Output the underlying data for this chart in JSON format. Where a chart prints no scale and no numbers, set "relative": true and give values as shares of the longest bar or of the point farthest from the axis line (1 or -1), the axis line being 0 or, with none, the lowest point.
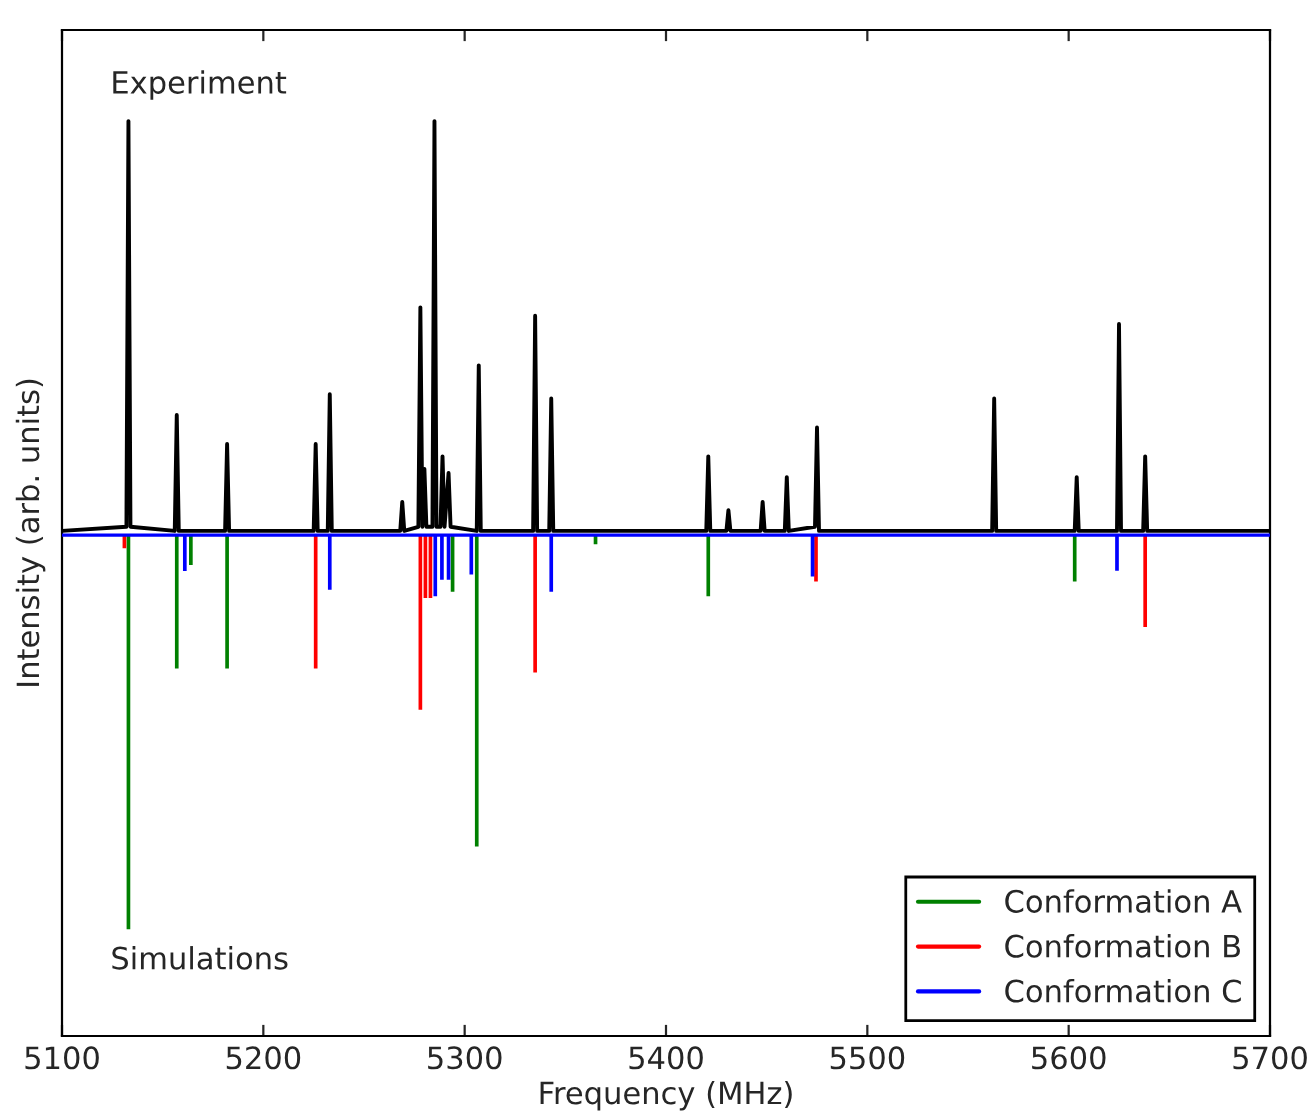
{
  "chart_data": {
    "type": "line",
    "relative": true,
    "xlabel": "Frequency (MHz)",
    "ylabel": "Intensity (arb. units)",
    "annotations": [
      "Experiment",
      "Simulations"
    ],
    "xlim": [
      5100,
      5700
    ],
    "xticks": [
      5100,
      5200,
      5300,
      5400,
      5500,
      5600,
      5700
    ],
    "ref_lines": [
      {
        "axis": "y",
        "value": 0,
        "color": "#0000ff"
      }
    ],
    "grid": false,
    "legend": "bottom right",
    "marker": "none",
    "line_style": "solid",
    "series": [
      {
        "color": "#000000",
        "x": [
          5100,
          5132,
          5133,
          5134,
          5156,
          5157,
          5158,
          5181,
          5182,
          5183,
          5225,
          5226,
          5227,
          5232,
          5233,
          5234,
          5268,
          5269,
          5270,
          5277,
          5278,
          5279,
          5280,
          5281,
          5282,
          5284,
          5285,
          5286,
          5288,
          5289,
          5290,
          5292,
          5293,
          5306,
          5307,
          5308,
          5334,
          5335,
          5336,
          5342,
          5343,
          5344,
          5420,
          5421,
          5422,
          5430,
          5431,
          5432,
          5447,
          5448,
          5449,
          5459,
          5460,
          5461,
          5474,
          5475,
          5476,
          5562,
          5563,
          5564,
          5603,
          5604,
          5605,
          5624,
          5625,
          5626,
          5637,
          5638,
          5639,
          5700
        ],
        "values": [
          0.01,
          0.02,
          1.0,
          0.02,
          0.01,
          0.29,
          0.01,
          0.01,
          0.22,
          0.01,
          0.01,
          0.22,
          0.01,
          0.01,
          0.34,
          0.01,
          0.01,
          0.08,
          0.01,
          0.02,
          0.55,
          0.02,
          0.16,
          0.02,
          0.02,
          0.02,
          1.0,
          0.02,
          0.02,
          0.19,
          0.02,
          0.15,
          0.02,
          0.01,
          0.41,
          0.01,
          0.01,
          0.53,
          0.01,
          0.01,
          0.33,
          0.01,
          0.01,
          0.19,
          0.01,
          0.01,
          0.06,
          0.01,
          0.01,
          0.08,
          0.01,
          0.01,
          0.14,
          0.01,
          0.02,
          0.26,
          0.01,
          0.01,
          0.33,
          0.01,
          0.01,
          0.14,
          0.01,
          0.01,
          0.51,
          0.01,
          0.01,
          0.19,
          0.01,
          0.01
        ]
      },
      {
        "type": "bar",
        "name": "Conformation A",
        "color": "#008000",
        "x": [
          5133,
          5157,
          5164,
          5182,
          5279,
          5294,
          5306,
          5365,
          5421,
          5603
        ],
        "values": [
          -0.95,
          -0.32,
          -0.07,
          -0.32,
          null,
          -0.135,
          -0.75,
          -0.02,
          -0.146,
          -0.11
        ]
      },
      {
        "type": "bar",
        "name": "Conformation B",
        "color": "#ff0000",
        "x": [
          5131,
          5226,
          5278,
          5280.5,
          5283,
          5335,
          5474.5,
          5638
        ],
        "values": [
          -0.03,
          -0.32,
          -0.42,
          -0.15,
          -0.15,
          -0.33,
          -0.11,
          -0.22
        ]
      },
      {
        "type": "bar",
        "name": "Conformation C",
        "color": "#0000ff",
        "x": [
          5161,
          5233,
          5285.4,
          5288.7,
          5292,
          5303.3,
          5343,
          5472.8,
          5624
        ],
        "values": [
          -0.085,
          -0.13,
          -0.146,
          -0.106,
          -0.106,
          -0.093,
          -0.135,
          -0.098,
          -0.084
        ]
      }
    ]
  }
}
